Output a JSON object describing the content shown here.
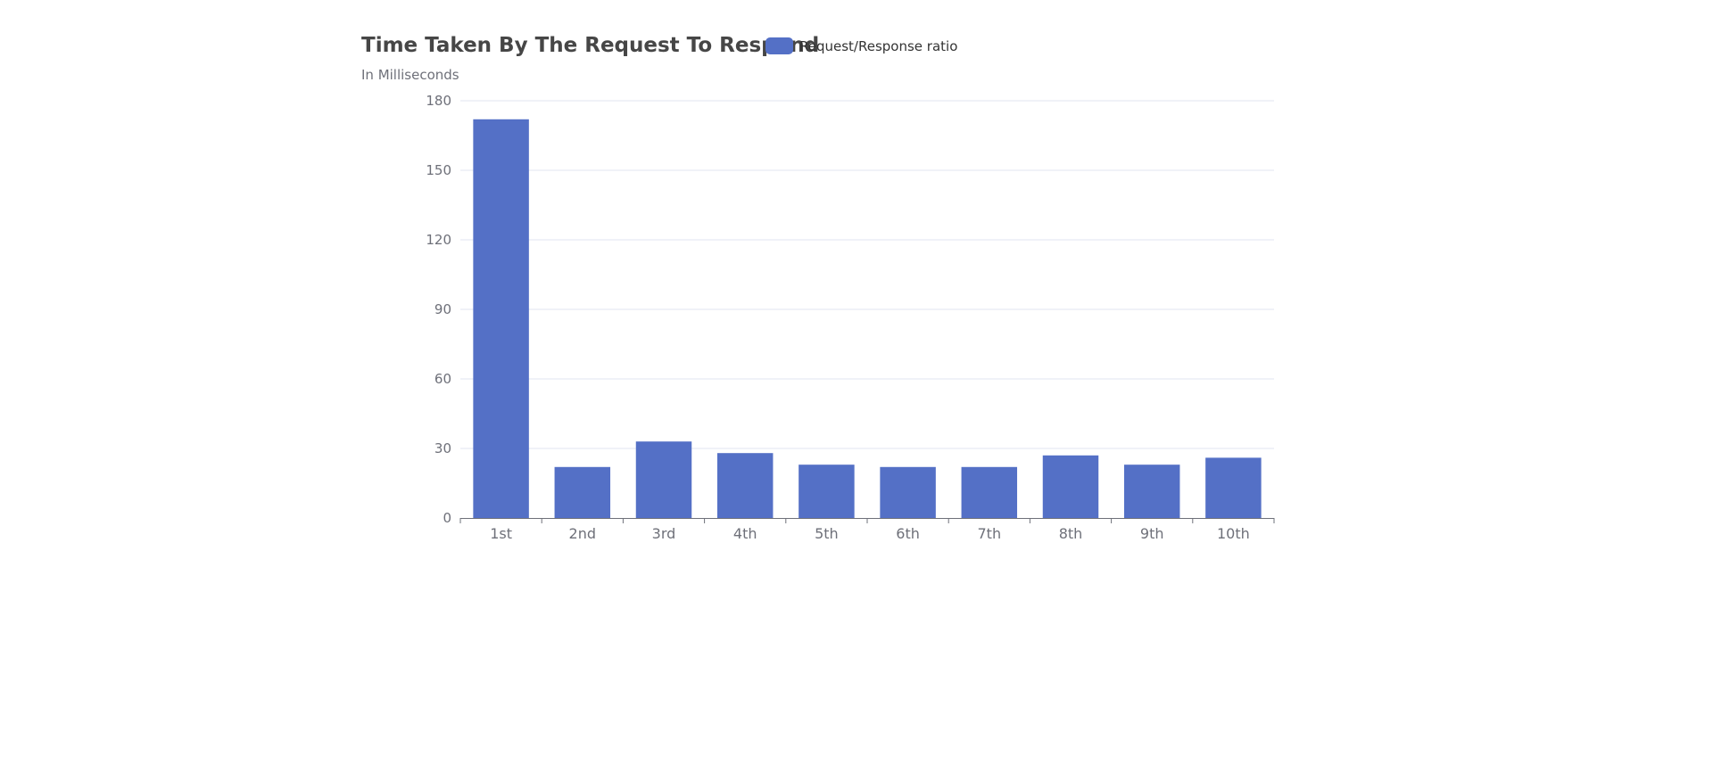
{
  "colors": {
    "bar": "#5470c6",
    "grid": "#e0e6f1",
    "axis": "#6e7079",
    "tick_text": "#6e7079"
  },
  "chart_data": {
    "type": "bar",
    "title": "Time Taken By The Request To Respond",
    "subtitle": "In Milliseconds",
    "legend": {
      "position": "top",
      "entries": [
        "Request/Response ratio"
      ]
    },
    "grid": true,
    "categories": [
      "1st",
      "2nd",
      "3rd",
      "4th",
      "5th",
      "6th",
      "7th",
      "8th",
      "9th",
      "10th"
    ],
    "series": [
      {
        "name": "Request/Response ratio",
        "values": [
          172,
          22,
          33,
          28,
          23,
          22,
          22,
          27,
          23,
          26
        ]
      }
    ],
    "ylim": [
      0,
      180
    ],
    "yticks": [
      0,
      30,
      60,
      90,
      120,
      150,
      180
    ],
    "xlabel": "",
    "ylabel": ""
  }
}
